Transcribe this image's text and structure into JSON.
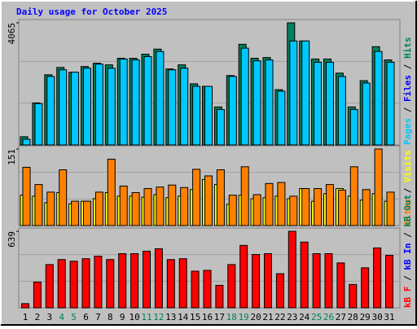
{
  "title": "Daily usage for October 2025",
  "legend_separator": " / ",
  "chart_data": [
    {
      "type": "bar",
      "ylim": [
        0,
        4065
      ],
      "yticks": [
        4065
      ],
      "legend": [
        {
          "name": "Pages",
          "color": "#00c8ff"
        },
        {
          "name": "Files",
          "color": "#0000ff"
        },
        {
          "name": "Hits",
          "color": "#00805c"
        }
      ],
      "series": [
        {
          "color": "#00805c",
          "values": [
            275,
            1400,
            2335,
            2580,
            2420,
            2610,
            2720,
            2665,
            2885,
            2885,
            3020,
            3190,
            2530,
            2665,
            2035,
            1950,
            1265,
            2310,
            3350,
            2885,
            2910,
            1840,
            4065,
            3460,
            2860,
            2860,
            2390,
            1265,
            2140,
            3270,
            2830
          ]
        },
        {
          "color": "#00c8ff",
          "values": [
            190,
            1375,
            2280,
            2500,
            2420,
            2555,
            2690,
            2555,
            2860,
            2830,
            2940,
            3110,
            2500,
            2555,
            1950,
            1950,
            1180,
            2280,
            3220,
            2800,
            2830,
            1790,
            3460,
            3460,
            2750,
            2750,
            2280,
            1180,
            2060,
            3110,
            2750
          ]
        }
      ]
    },
    {
      "type": "bar",
      "ylim": [
        0,
        151
      ],
      "yticks": [
        151
      ],
      "legend": [
        {
          "name": "Sites",
          "color": "#ff8000"
        },
        {
          "name": "Visits",
          "color": "#ffff00"
        }
      ],
      "series": [
        {
          "color": "#ffff00",
          "values": [
            60,
            58,
            45,
            65,
            43,
            48,
            53,
            65,
            58,
            58,
            56,
            61,
            55,
            58,
            71,
            91,
            81,
            42,
            60,
            53,
            55,
            58,
            53,
            73,
            48,
            63,
            73,
            58,
            50,
            63,
            48
          ]
        },
        {
          "color": "#ff8000",
          "values": [
            115,
            81,
            66,
            110,
            48,
            48,
            66,
            131,
            78,
            65,
            73,
            76,
            80,
            75,
            111,
            98,
            110,
            60,
            116,
            61,
            83,
            85,
            58,
            73,
            73,
            81,
            70,
            116,
            71,
            151,
            66
          ]
        }
      ]
    },
    {
      "type": "bar",
      "ylim": [
        0,
        639
      ],
      "yticks": [
        639
      ],
      "legend": [
        {
          "name": "kB F",
          "color": "#ff0000"
        },
        {
          "name": "kB In",
          "color": "#0000ff"
        },
        {
          "name": "kB Out",
          "color": "#00805c"
        }
      ],
      "categories": [
        "1",
        "2",
        "3",
        "4",
        "5",
        "6",
        "7",
        "8",
        "9",
        "10",
        "11",
        "12",
        "13",
        "14",
        "15",
        "16",
        "17",
        "18",
        "19",
        "20",
        "21",
        "22",
        "23",
        "24",
        "25",
        "26",
        "27",
        "28",
        "29",
        "30",
        "31"
      ],
      "category_colors": [
        "#000000",
        "#000000",
        "#000000",
        "#00805c",
        "#00805c",
        "#000000",
        "#000000",
        "#000000",
        "#000000",
        "#000000",
        "#00805c",
        "#00805c",
        "#000000",
        "#000000",
        "#000000",
        "#000000",
        "#000000",
        "#00805c",
        "#00805c",
        "#000000",
        "#000000",
        "#000000",
        "#000000",
        "#000000",
        "#00805c",
        "#00805c",
        "#000000",
        "#000000",
        "#000000",
        "#000000",
        "#000000"
      ],
      "series": [
        {
          "color": "#ff0000",
          "values": [
            35,
            215,
            361,
            403,
            389,
            410,
            431,
            403,
            452,
            452,
            473,
            493,
            403,
            410,
            306,
            313,
            188,
            361,
            521,
            445,
            452,
            285,
            639,
            549,
            452,
            452,
            375,
            195,
            334,
            500,
            438
          ]
        }
      ]
    }
  ]
}
